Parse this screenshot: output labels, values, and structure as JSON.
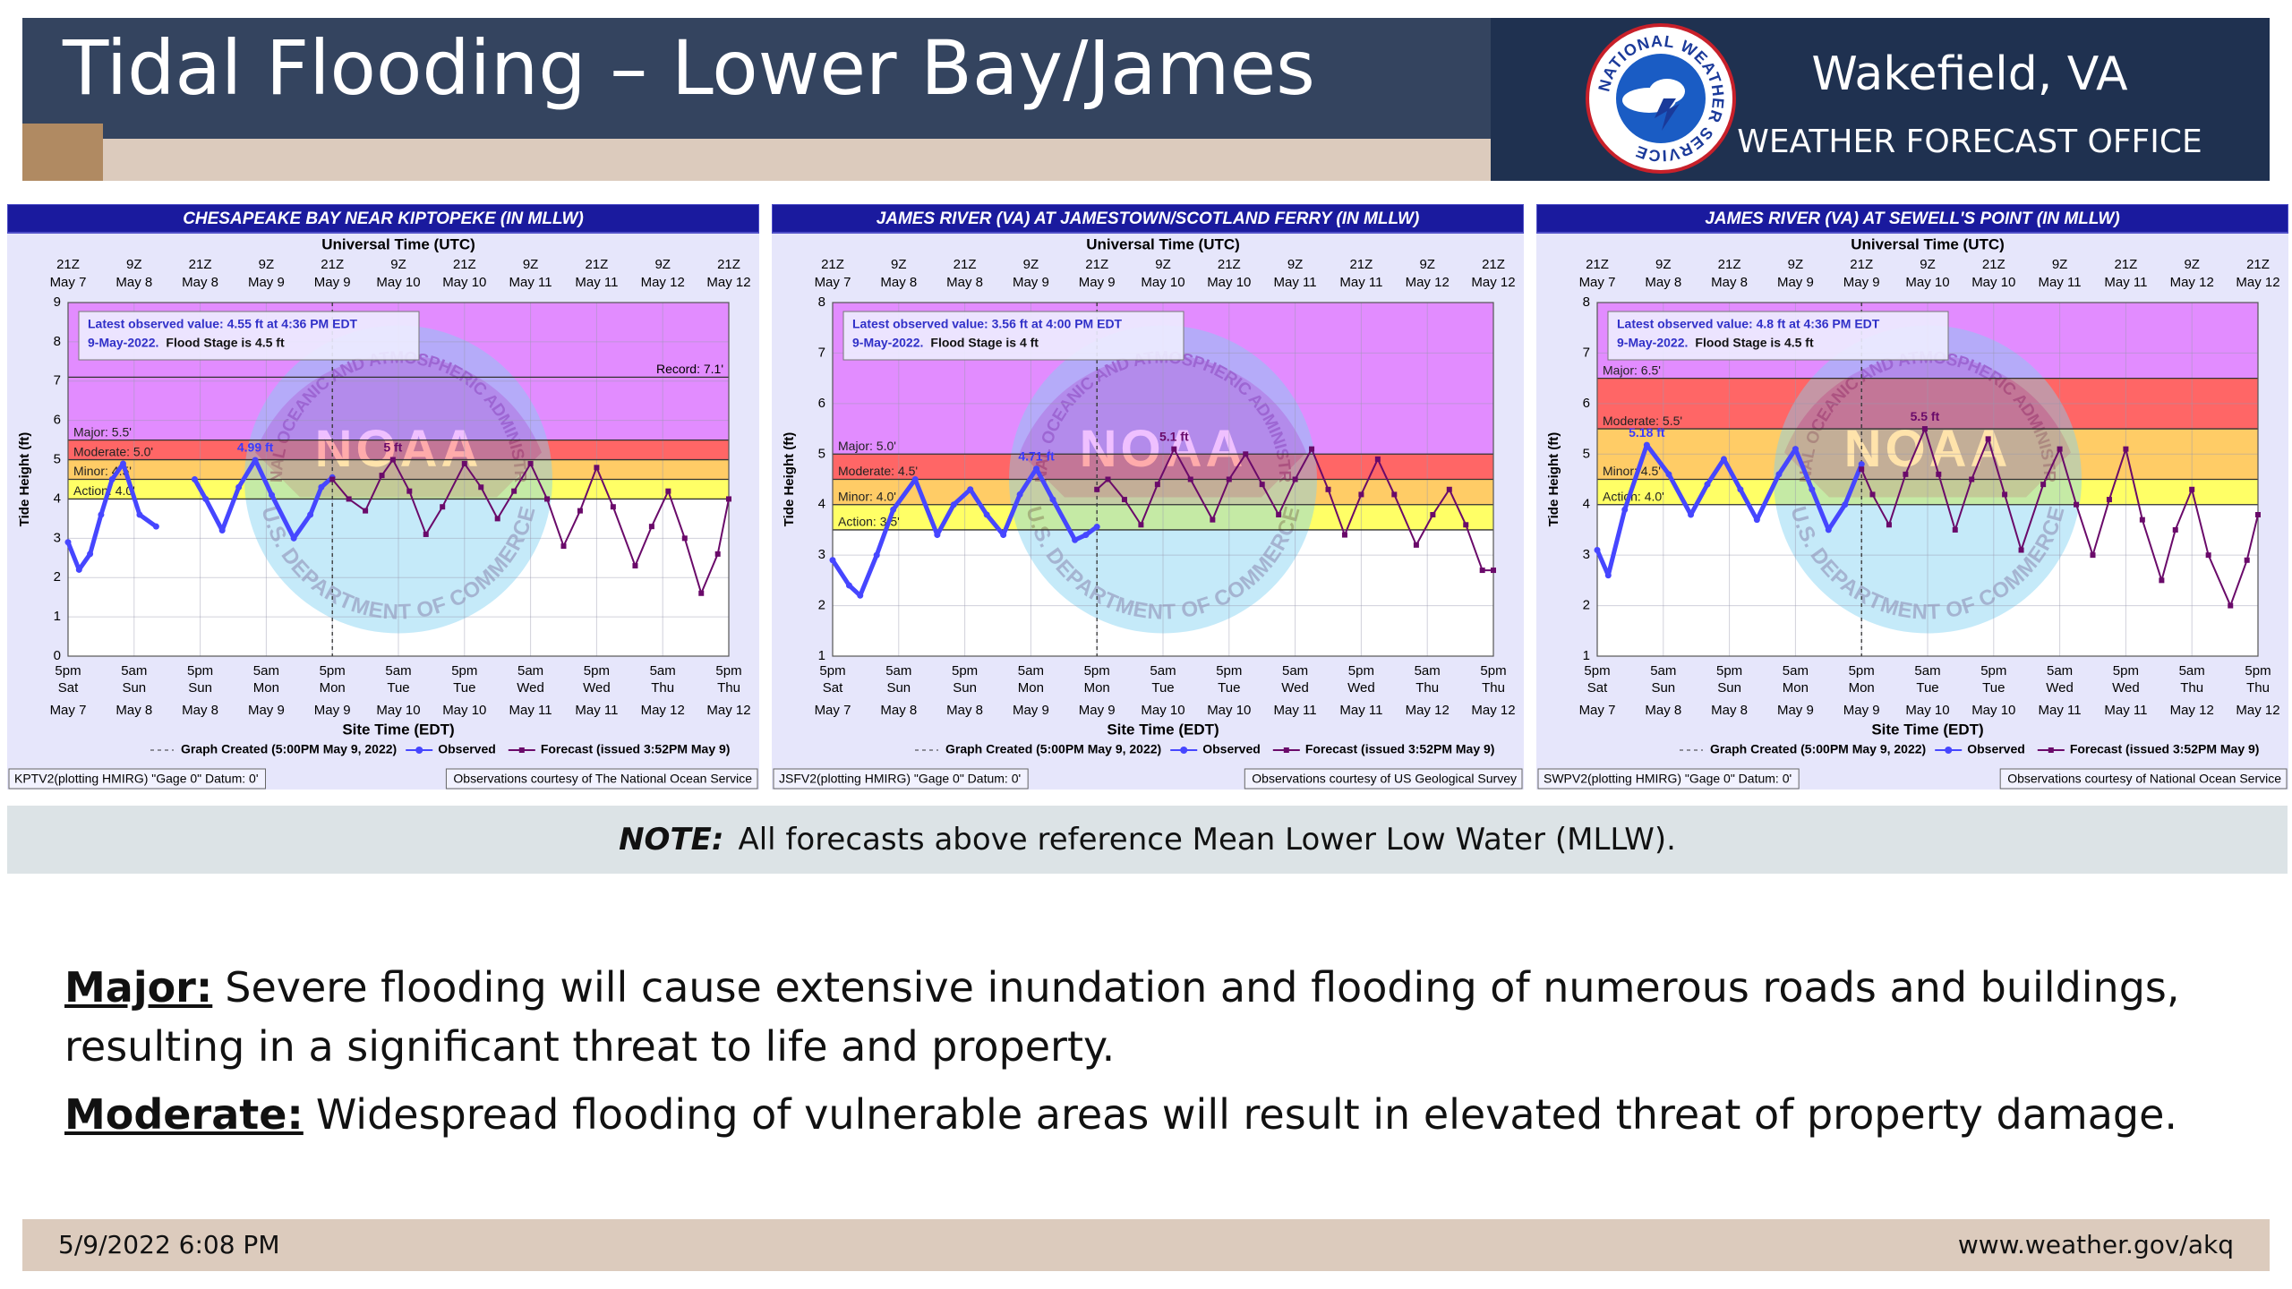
{
  "header": {
    "title": "Tidal Flooding – Lower Bay/James",
    "office": "Wakefield, VA",
    "office_subtitle": "WEATHER FORECAST OFFICE",
    "logo_text": "NATIONAL WEATHER SERVICE"
  },
  "watermark": {
    "agency": "NATIONAL OCEANIC AND ATMOSPHERIC ADMINISTRATION",
    "name": "NOAA",
    "department": "U.S. DEPARTMENT OF COMMERCE"
  },
  "chart_data": [
    {
      "type": "line",
      "title": "CHESAPEAKE BAY NEAR KIPTOPEKE (IN MLLW)",
      "x_title_top": "Universal Time (UTC)",
      "xlabel": "Site Time (EDT)",
      "ylabel": "Tide Height (ft)",
      "xlim": [
        0,
        120
      ],
      "xticks": [
        {
          "value": 0,
          "label": "5pm"
        },
        {
          "value": 12,
          "label": "5am"
        },
        {
          "value": 24,
          "label": "5pm"
        },
        {
          "value": 36,
          "label": "5am"
        },
        {
          "value": 48,
          "label": "5pm"
        },
        {
          "value": 60,
          "label": "5am"
        },
        {
          "value": 72,
          "label": "5pm"
        },
        {
          "value": 84,
          "label": "5am"
        },
        {
          "value": 96,
          "label": "5pm"
        },
        {
          "value": 108,
          "label": "5am"
        },
        {
          "value": 120,
          "label": "5pm"
        }
      ],
      "x_day_labels": [
        "Sat",
        "Sun",
        "Sun",
        "Mon",
        "Mon",
        "Tue",
        "Tue",
        "Wed",
        "Wed",
        "Thu",
        "Thu"
      ],
      "x_date_labels": [
        "May 7",
        "May 8",
        "May 8",
        "May 9",
        "May 9",
        "May 10",
        "May 10",
        "May 11",
        "May 11",
        "May 12",
        "May 12"
      ],
      "x2ticks": [
        {
          "value": 0,
          "label": "21Z"
        },
        {
          "value": 12,
          "label": "9Z"
        },
        {
          "value": 24,
          "label": "21Z"
        },
        {
          "value": 36,
          "label": "9Z"
        },
        {
          "value": 48,
          "label": "21Z"
        },
        {
          "value": 60,
          "label": "9Z"
        },
        {
          "value": 72,
          "label": "21Z"
        },
        {
          "value": 84,
          "label": "9Z"
        },
        {
          "value": 96,
          "label": "21Z"
        },
        {
          "value": 108,
          "label": "9Z"
        },
        {
          "value": 120,
          "label": "21Z"
        }
      ],
      "x2_date_labels": [
        "May 7",
        "May 8",
        "May 8",
        "May 9",
        "May 9",
        "May 10",
        "May 10",
        "May 11",
        "May 11",
        "May 12",
        "May 12"
      ],
      "ylim": [
        0,
        9
      ],
      "yticks": [
        0,
        1,
        2,
        3,
        4,
        5,
        6,
        7,
        8,
        9
      ],
      "grid": true,
      "thresholds": [
        {
          "label": "Action: 4.0'",
          "value": 4.0,
          "color": "#ffff66"
        },
        {
          "label": "Minor: 4.5'",
          "value": 4.5,
          "color": "#ffcc66"
        },
        {
          "label": "Moderate: 5.0'",
          "value": 5.0,
          "color": "#ff6666"
        },
        {
          "label": "Major: 5.5'",
          "value": 5.5,
          "color": "#e28cff"
        }
      ],
      "record": {
        "label": "Record: 7.1'",
        "value": 7.1
      },
      "info": [
        "Latest observed value: 4.55 ft at 4:36 PM EDT",
        "9-May-2022.",
        "Flood Stage is 4.5 ft"
      ],
      "created": {
        "label": "Graph Created (5:00PM May 9, 2022)",
        "x": 48
      },
      "series": [
        {
          "name": "Observed",
          "color": "#4646ff",
          "x": [
            0,
            2,
            4,
            6,
            8,
            10,
            13,
            16,
            19,
            23,
            25,
            28,
            31,
            34,
            37,
            41,
            44,
            46,
            48
          ],
          "values": [
            2.9,
            2.2,
            2.6,
            3.6,
            4.5,
            4.9,
            3.6,
            3.3,
            null,
            4.5,
            4.0,
            3.2,
            4.3,
            4.99,
            4.1,
            3.0,
            3.6,
            4.3,
            4.55
          ]
        },
        {
          "name": "Forecast (issued 3:52PM May 9)",
          "color": "#6a0a6a",
          "x": [
            48,
            51,
            54,
            57,
            59,
            62,
            65,
            68,
            72,
            75,
            78,
            81,
            84,
            87,
            90,
            93,
            96,
            99,
            103,
            106,
            109,
            112,
            115,
            118,
            120
          ],
          "values": [
            4.5,
            4.0,
            3.7,
            4.6,
            5.0,
            4.2,
            3.1,
            3.8,
            4.9,
            4.3,
            3.5,
            4.2,
            4.9,
            4.0,
            2.8,
            3.7,
            4.8,
            3.8,
            2.3,
            3.3,
            4.2,
            3.0,
            1.6,
            2.6,
            4.0
          ]
        }
      ],
      "annotations": [
        {
          "x": 34,
          "value": 4.99,
          "label": "4.99 ft",
          "color": "#3a3aff"
        },
        {
          "x": 59,
          "value": 5,
          "label": "5 ft",
          "color": "#6a0a6a"
        }
      ],
      "footnotes": [
        "KPTV2(plotting HMIRG) \"Gage 0\" Datum: 0'",
        "Observations courtesy of The National Ocean Service"
      ]
    },
    {
      "type": "line",
      "title": "JAMES RIVER (VA) AT JAMESTOWN/SCOTLAND FERRY (IN MLLW)",
      "x_title_top": "Universal Time (UTC)",
      "xlabel": "Site Time (EDT)",
      "ylabel": "Tide Height (ft)",
      "xlim": [
        0,
        120
      ],
      "xticks": [
        {
          "value": 0,
          "label": "5pm"
        },
        {
          "value": 12,
          "label": "5am"
        },
        {
          "value": 24,
          "label": "5pm"
        },
        {
          "value": 36,
          "label": "5am"
        },
        {
          "value": 48,
          "label": "5pm"
        },
        {
          "value": 60,
          "label": "5am"
        },
        {
          "value": 72,
          "label": "5pm"
        },
        {
          "value": 84,
          "label": "5am"
        },
        {
          "value": 96,
          "label": "5pm"
        },
        {
          "value": 108,
          "label": "5am"
        },
        {
          "value": 120,
          "label": "5pm"
        }
      ],
      "x_day_labels": [
        "Sat",
        "Sun",
        "Sun",
        "Mon",
        "Mon",
        "Tue",
        "Tue",
        "Wed",
        "Wed",
        "Thu",
        "Thu"
      ],
      "x_date_labels": [
        "May 7",
        "May 8",
        "May 8",
        "May 9",
        "May 9",
        "May 10",
        "May 10",
        "May 11",
        "May 11",
        "May 12",
        "May 12"
      ],
      "x2ticks": [
        {
          "value": 0,
          "label": "21Z"
        },
        {
          "value": 12,
          "label": "9Z"
        },
        {
          "value": 24,
          "label": "21Z"
        },
        {
          "value": 36,
          "label": "9Z"
        },
        {
          "value": 48,
          "label": "21Z"
        },
        {
          "value": 60,
          "label": "9Z"
        },
        {
          "value": 72,
          "label": "21Z"
        },
        {
          "value": 84,
          "label": "9Z"
        },
        {
          "value": 96,
          "label": "21Z"
        },
        {
          "value": 108,
          "label": "9Z"
        },
        {
          "value": 120,
          "label": "21Z"
        }
      ],
      "x2_date_labels": [
        "May 7",
        "May 8",
        "May 8",
        "May 9",
        "May 9",
        "May 10",
        "May 10",
        "May 11",
        "May 11",
        "May 12",
        "May 12"
      ],
      "ylim": [
        1,
        8
      ],
      "yticks": [
        1,
        2,
        3,
        4,
        5,
        6,
        7,
        8
      ],
      "grid": true,
      "thresholds": [
        {
          "label": "Action: 3.5'",
          "value": 3.5,
          "color": "#ffff66"
        },
        {
          "label": "Minor: 4.0'",
          "value": 4.0,
          "color": "#ffcc66"
        },
        {
          "label": "Moderate: 4.5'",
          "value": 4.5,
          "color": "#ff6666"
        },
        {
          "label": "Major: 5.0'",
          "value": 5.0,
          "color": "#e28cff"
        }
      ],
      "info": [
        "Latest observed value: 3.56 ft at 4:00 PM EDT",
        "9-May-2022.",
        "Flood Stage is 4 ft"
      ],
      "created": {
        "label": "Graph Created (5:00PM May 9, 2022)",
        "x": 48
      },
      "series": [
        {
          "name": "Observed",
          "color": "#4646ff",
          "x": [
            0,
            3,
            5,
            8,
            11,
            15,
            19,
            22,
            25,
            28,
            31,
            34,
            37,
            40,
            44,
            46,
            48
          ],
          "values": [
            2.9,
            2.4,
            2.2,
            3.0,
            3.9,
            4.5,
            3.4,
            4.0,
            4.3,
            3.8,
            3.4,
            4.2,
            4.71,
            4.1,
            3.3,
            3.4,
            3.56
          ]
        },
        {
          "name": "Forecast (issued 3:52PM May 9)",
          "color": "#6a0a6a",
          "x": [
            48,
            50,
            53,
            56,
            59,
            62,
            65,
            69,
            72,
            75,
            78,
            81,
            84,
            87,
            90,
            93,
            96,
            99,
            102,
            106,
            109,
            112,
            115,
            118,
            120
          ],
          "values": [
            4.3,
            4.5,
            4.1,
            3.6,
            4.4,
            5.1,
            4.5,
            3.7,
            4.5,
            5.0,
            4.4,
            3.8,
            4.5,
            5.1,
            4.3,
            3.4,
            4.2,
            4.9,
            4.2,
            3.2,
            3.8,
            4.3,
            3.6,
            2.7,
            2.7
          ]
        }
      ],
      "annotations": [
        {
          "x": 37,
          "value": 4.71,
          "label": "4.71 ft",
          "color": "#3a3aff"
        },
        {
          "x": 62,
          "value": 5.1,
          "label": "5.1 ft",
          "color": "#6a0a6a"
        }
      ],
      "footnotes": [
        "JSFV2(plotting HMIRG) \"Gage 0\" Datum: 0'",
        "Observations courtesy of US Geological Survey"
      ]
    },
    {
      "type": "line",
      "title": "JAMES RIVER (VA) AT SEWELL'S POINT (IN MLLW)",
      "x_title_top": "Universal Time (UTC)",
      "xlabel": "Site Time (EDT)",
      "ylabel": "Tide Height (ft)",
      "xlim": [
        0,
        120
      ],
      "xticks": [
        {
          "value": 0,
          "label": "5pm"
        },
        {
          "value": 12,
          "label": "5am"
        },
        {
          "value": 24,
          "label": "5pm"
        },
        {
          "value": 36,
          "label": "5am"
        },
        {
          "value": 48,
          "label": "5pm"
        },
        {
          "value": 60,
          "label": "5am"
        },
        {
          "value": 72,
          "label": "5pm"
        },
        {
          "value": 84,
          "label": "5am"
        },
        {
          "value": 96,
          "label": "5pm"
        },
        {
          "value": 108,
          "label": "5am"
        },
        {
          "value": 120,
          "label": "5pm"
        }
      ],
      "x_day_labels": [
        "Sat",
        "Sun",
        "Sun",
        "Mon",
        "Mon",
        "Tue",
        "Tue",
        "Wed",
        "Wed",
        "Thu",
        "Thu"
      ],
      "x_date_labels": [
        "May 7",
        "May 8",
        "May 8",
        "May 9",
        "May 9",
        "May 10",
        "May 10",
        "May 11",
        "May 11",
        "May 12",
        "May 12"
      ],
      "x2ticks": [
        {
          "value": 0,
          "label": "21Z"
        },
        {
          "value": 12,
          "label": "9Z"
        },
        {
          "value": 24,
          "label": "21Z"
        },
        {
          "value": 36,
          "label": "9Z"
        },
        {
          "value": 48,
          "label": "21Z"
        },
        {
          "value": 60,
          "label": "9Z"
        },
        {
          "value": 72,
          "label": "21Z"
        },
        {
          "value": 84,
          "label": "9Z"
        },
        {
          "value": 96,
          "label": "21Z"
        },
        {
          "value": 108,
          "label": "9Z"
        },
        {
          "value": 120,
          "label": "21Z"
        }
      ],
      "x2_date_labels": [
        "May 7",
        "May 8",
        "May 8",
        "May 9",
        "May 9",
        "May 10",
        "May 10",
        "May 11",
        "May 11",
        "May 12",
        "May 12"
      ],
      "ylim": [
        1,
        8
      ],
      "yticks": [
        1,
        2,
        3,
        4,
        5,
        6,
        7,
        8
      ],
      "grid": true,
      "thresholds": [
        {
          "label": "Action: 4.0'",
          "value": 4.0,
          "color": "#ffff66"
        },
        {
          "label": "Minor: 4.5'",
          "value": 4.5,
          "color": "#ffcc66"
        },
        {
          "label": "Moderate: 5.5'",
          "value": 5.5,
          "color": "#ff6666"
        },
        {
          "label": "Major: 6.5'",
          "value": 6.5,
          "color": "#e28cff"
        }
      ],
      "info": [
        "Latest observed value: 4.8 ft at 4:36 PM EDT",
        "9-May-2022.",
        "Flood Stage is 4.5 ft"
      ],
      "created": {
        "label": "Graph Created (5:00PM May 9, 2022)",
        "x": 48
      },
      "series": [
        {
          "name": "Observed",
          "color": "#4646ff",
          "x": [
            0,
            2,
            5,
            9,
            13,
            17,
            20,
            23,
            26,
            29,
            33,
            36,
            39,
            42,
            45,
            48
          ],
          "values": [
            3.1,
            2.6,
            3.9,
            5.18,
            4.6,
            3.8,
            4.4,
            4.9,
            4.3,
            3.7,
            4.6,
            5.1,
            4.3,
            3.5,
            4.0,
            4.8
          ]
        },
        {
          "name": "Forecast (issued 3:52PM May 9)",
          "color": "#6a0a6a",
          "x": [
            48,
            50,
            53,
            56,
            59.5,
            62,
            65,
            68,
            71,
            74,
            77,
            81,
            84,
            87,
            90,
            93,
            96,
            99,
            102.5,
            105,
            108,
            111,
            115,
            118,
            120
          ],
          "values": [
            4.7,
            4.2,
            3.6,
            4.6,
            5.5,
            4.6,
            3.5,
            4.5,
            5.3,
            4.2,
            3.1,
            4.4,
            5.1,
            4.0,
            3.0,
            4.1,
            5.1,
            3.7,
            2.5,
            3.5,
            4.3,
            3.0,
            2.0,
            2.9,
            3.8
          ]
        }
      ],
      "annotations": [
        {
          "x": 9,
          "value": 5.18,
          "label": "5.18 ft",
          "color": "#3a3aff"
        },
        {
          "x": 59.5,
          "value": 5.5,
          "label": "5.5 ft",
          "color": "#6a0a6a"
        }
      ],
      "footnotes": [
        "SWPV2(plotting HMIRG) \"Gage 0\" Datum: 0'",
        "Observations courtesy of National Ocean Service"
      ]
    }
  ],
  "note": {
    "label": "NOTE:",
    "text": "All forecasts above reference Mean Lower Low Water (MLLW)."
  },
  "definitions": [
    {
      "term": "Major:",
      "text": "Severe flooding will cause extensive inundation and flooding of numerous roads and buildings, resulting in a significant threat to life and property."
    },
    {
      "term": "Moderate:",
      "text": "Widespread flooding of vulnerable areas will result in elevated threat of property damage."
    }
  ],
  "footer": {
    "date": "5/9/2022 6:08 PM",
    "url": "www.weather.gov/akq"
  }
}
